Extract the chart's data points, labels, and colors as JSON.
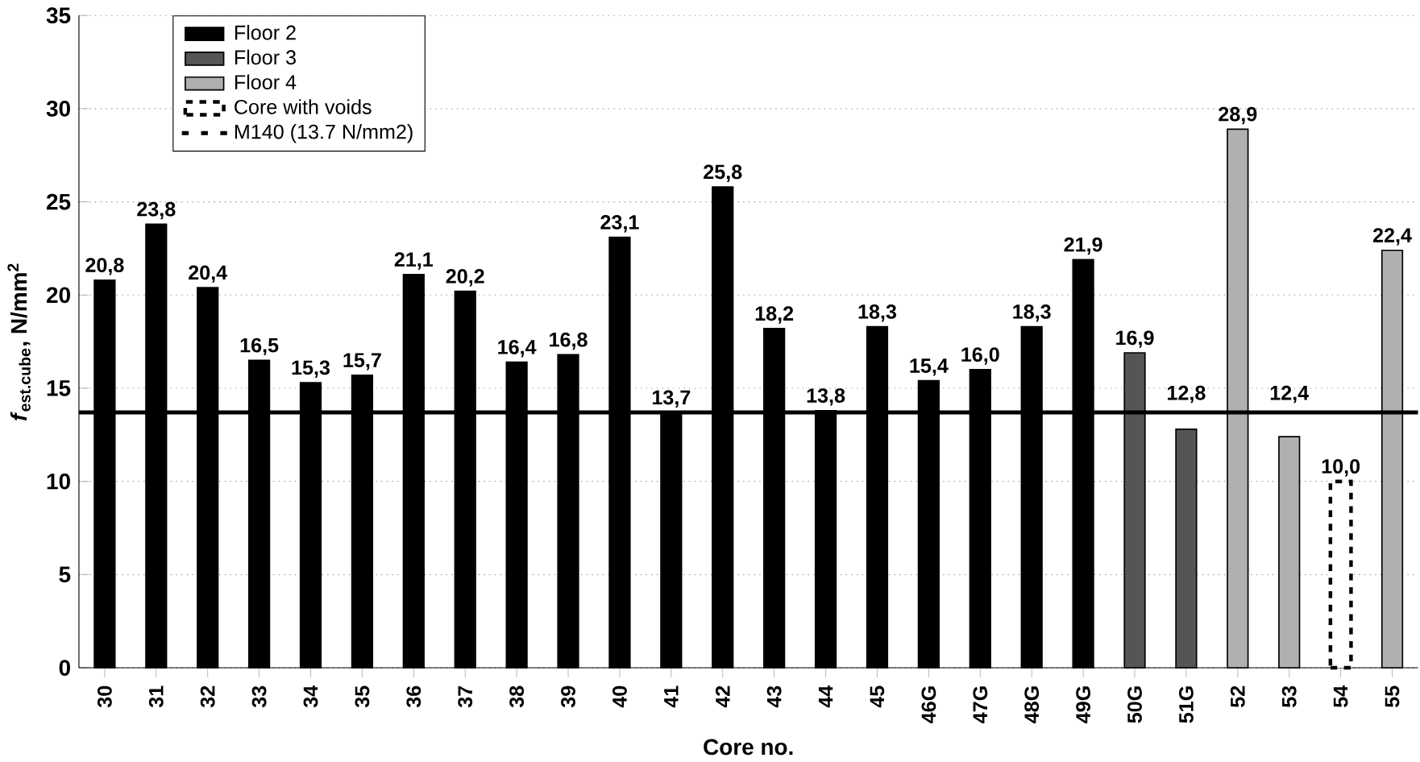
{
  "chart_data": {
    "type": "bar",
    "xlabel": "Core no.",
    "ylabel": "*f*$_{est.cube}$, N/mm$^{2}$",
    "categories": [
      "30",
      "31",
      "32",
      "33",
      "34",
      "35",
      "36",
      "37",
      "38",
      "39",
      "40",
      "41",
      "42",
      "43",
      "44",
      "45",
      "46G",
      "47G",
      "48G",
      "49G",
      "50G",
      "51G",
      "52",
      "53",
      "54",
      "55"
    ],
    "series": [
      {
        "name": "Floor 2",
        "color": "#000000",
        "values": [
          20.8,
          23.8,
          20.4,
          16.5,
          15.3,
          15.7,
          21.1,
          20.2,
          16.4,
          16.8,
          23.1,
          13.7,
          25.8,
          18.2,
          13.8,
          18.3,
          15.4,
          16.0,
          18.3,
          21.9,
          null,
          null,
          null,
          null,
          null,
          null
        ],
        "value_labels": [
          "20,8",
          "23,8",
          "20,4",
          "16,5",
          "15,3",
          "15,7",
          "21,1",
          "20,2",
          "16,4",
          "16,8",
          "23,1",
          "13,7",
          "25,8",
          "18,2",
          "13,8",
          "18,3",
          "15,4",
          "16,0",
          "18,3",
          "21,9",
          null,
          null,
          null,
          null,
          null,
          null
        ]
      },
      {
        "name": "Floor 3",
        "color": "#555555",
        "values": [
          null,
          null,
          null,
          null,
          null,
          null,
          null,
          null,
          null,
          null,
          null,
          null,
          null,
          null,
          null,
          null,
          null,
          null,
          null,
          null,
          16.9,
          12.8,
          null,
          null,
          null,
          null
        ],
        "value_labels": [
          null,
          null,
          null,
          null,
          null,
          null,
          null,
          null,
          null,
          null,
          null,
          null,
          null,
          null,
          null,
          null,
          null,
          null,
          null,
          null,
          "16,9",
          "12,8",
          null,
          null,
          null,
          null
        ]
      },
      {
        "name": "Floor 4",
        "color": "#b0b0b0",
        "values": [
          null,
          null,
          null,
          null,
          null,
          null,
          null,
          null,
          null,
          null,
          null,
          null,
          null,
          null,
          null,
          null,
          null,
          null,
          null,
          null,
          null,
          null,
          28.9,
          12.4,
          null,
          22.4
        ],
        "value_labels": [
          null,
          null,
          null,
          null,
          null,
          null,
          null,
          null,
          null,
          null,
          null,
          null,
          null,
          null,
          null,
          null,
          null,
          null,
          null,
          null,
          null,
          null,
          "28,9",
          "12,4",
          null,
          "22,4"
        ]
      },
      {
        "name": "Core with voids",
        "color": "#ffffff",
        "line_style": "dashed",
        "values": [
          null,
          null,
          null,
          null,
          null,
          null,
          null,
          null,
          null,
          null,
          null,
          null,
          null,
          null,
          null,
          null,
          null,
          null,
          null,
          null,
          null,
          null,
          null,
          null,
          10.0,
          null
        ],
        "value_labels": [
          null,
          null,
          null,
          null,
          null,
          null,
          null,
          null,
          null,
          null,
          null,
          null,
          null,
          null,
          null,
          null,
          null,
          null,
          null,
          null,
          null,
          null,
          null,
          null,
          "10,0",
          null
        ]
      }
    ],
    "ref_lines": [
      {
        "axis": "y",
        "value": 13.7,
        "label": "M140 (13.7 N/mm2)",
        "color": "#000000"
      }
    ],
    "ylim": [
      0,
      35
    ],
    "yticks": [
      0,
      5,
      10,
      15,
      20,
      25,
      30,
      35
    ],
    "grid": "y",
    "legend": "top left"
  }
}
